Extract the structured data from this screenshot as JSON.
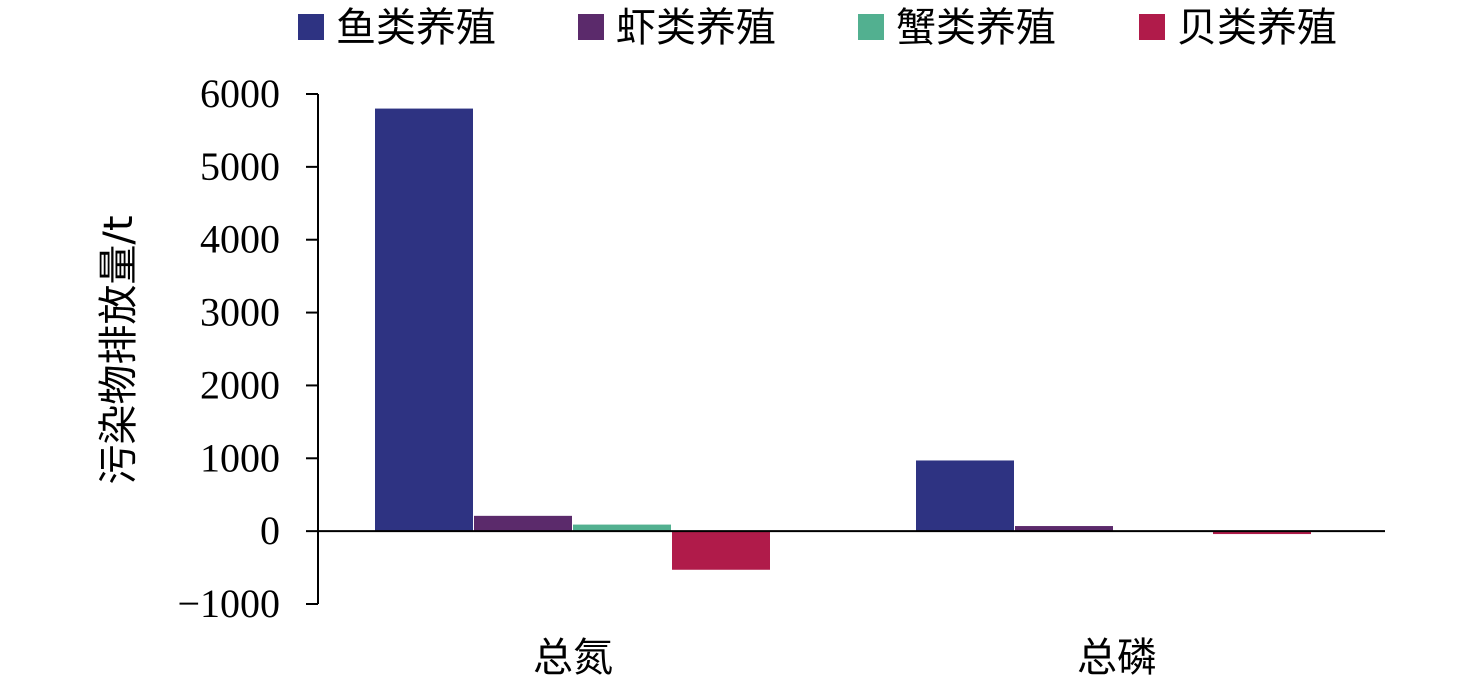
{
  "chart_data": {
    "type": "bar",
    "categories": [
      "总氮",
      "总磷"
    ],
    "series": [
      {
        "name": "鱼类养殖",
        "values": [
          5800,
          970
        ],
        "color": "#2e3382"
      },
      {
        "name": "虾类养殖",
        "values": [
          210,
          70
        ],
        "color": "#5b2a6b"
      },
      {
        "name": "蟹类养殖",
        "values": [
          90,
          5
        ],
        "color": "#52b090"
      },
      {
        "name": "贝类养殖",
        "values": [
          -530,
          -40
        ],
        "color": "#b01b4a"
      }
    ],
    "ylabel": "污染物排放量/t",
    "ylim": [
      -1000,
      6000
    ],
    "yticks": [
      -1000,
      0,
      1000,
      2000,
      3000,
      4000,
      5000,
      6000
    ],
    "yticks_display": [
      "−1000",
      "0",
      "1000",
      "2000",
      "3000",
      "4000",
      "5000",
      "6000"
    ],
    "grid": false,
    "legend_position": "top"
  }
}
